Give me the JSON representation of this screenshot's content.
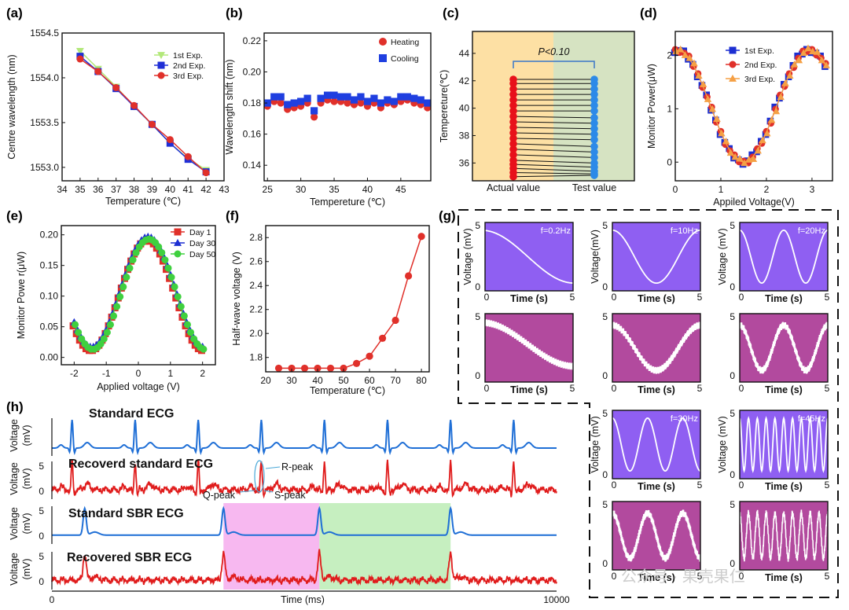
{
  "panel_labels": [
    "(a)",
    "(b)",
    "(c)",
    "(d)",
    "(e)",
    "(f)",
    "(g)",
    "(h)"
  ],
  "watermark": "公众号 · 果壳果仁",
  "chart_data": [
    {
      "id": "a",
      "type": "line",
      "xlabel": "Temperature (℃)",
      "ylabel": "Centre wavelength (nm)",
      "xlim": [
        34,
        43
      ],
      "ylim": [
        1552.85,
        1554.5
      ],
      "xticks": [
        34,
        35,
        36,
        37,
        38,
        39,
        40,
        41,
        42,
        43
      ],
      "yticks": [
        1553.0,
        1553.5,
        1554.0,
        1554.5
      ],
      "ytick_labels": [
        "1553.0",
        "1553.5",
        "1554.0",
        "1554.5"
      ],
      "legend_position": "top-right",
      "series": [
        {
          "name": "1st Exp.",
          "color": "#b3e87a",
          "marker": "triangle-down",
          "x": [
            35,
            36,
            37,
            38,
            39,
            40,
            41,
            42
          ],
          "y": [
            1554.3,
            1554.1,
            1553.9,
            1553.68,
            1553.48,
            1553.27,
            1553.1,
            1552.97
          ]
        },
        {
          "name": "2nd Exp.",
          "color": "#1f2fd6",
          "marker": "square",
          "x": [
            35,
            36,
            37,
            38,
            39,
            40,
            41,
            42
          ],
          "y": [
            1554.24,
            1554.07,
            1553.88,
            1553.68,
            1553.48,
            1553.27,
            1553.09,
            1552.95
          ]
        },
        {
          "name": "3rd Exp.",
          "color": "#e0302a",
          "marker": "circle",
          "x": [
            35,
            36,
            37,
            38,
            39,
            40,
            41,
            42
          ],
          "y": [
            1554.21,
            1554.07,
            1553.89,
            1553.69,
            1553.48,
            1553.31,
            1553.12,
            1552.94
          ]
        }
      ]
    },
    {
      "id": "b",
      "type": "scatter",
      "xlabel": "Tempereture (℃)",
      "ylabel": "Wavelength shift (nm)",
      "xlim": [
        24.5,
        49.5
      ],
      "ylim": [
        0.13,
        0.225
      ],
      "xticks": [
        25,
        30,
        35,
        40,
        45
      ],
      "yticks": [
        0.14,
        0.16,
        0.18,
        0.2,
        0.22
      ],
      "ytick_labels": [
        "0.14",
        "0.16",
        "0.18",
        "0.20",
        "0.22"
      ],
      "legend_position": "top-right",
      "series": [
        {
          "name": "Heating",
          "color": "#e0302a",
          "marker": "circle",
          "x": [
            25,
            26,
            27,
            28,
            29,
            30,
            31,
            32,
            33,
            34,
            35,
            36,
            37,
            38,
            39,
            40,
            41,
            42,
            43,
            44,
            45,
            46,
            47,
            48,
            49
          ],
          "y": [
            0.178,
            0.181,
            0.18,
            0.176,
            0.177,
            0.178,
            0.18,
            0.171,
            0.18,
            0.182,
            0.181,
            0.181,
            0.18,
            0.179,
            0.18,
            0.178,
            0.18,
            0.177,
            0.18,
            0.179,
            0.181,
            0.182,
            0.18,
            0.179,
            0.177
          ]
        },
        {
          "name": "Cooling",
          "color": "#1f3fe0",
          "marker": "square",
          "x": [
            25,
            26,
            27,
            28,
            29,
            30,
            31,
            32,
            33,
            34,
            35,
            36,
            37,
            38,
            39,
            40,
            41,
            42,
            43,
            44,
            45,
            46,
            47,
            48,
            49
          ],
          "y": [
            0.18,
            0.184,
            0.184,
            0.179,
            0.18,
            0.181,
            0.183,
            0.175,
            0.183,
            0.185,
            0.185,
            0.184,
            0.184,
            0.182,
            0.184,
            0.181,
            0.183,
            0.18,
            0.182,
            0.181,
            0.184,
            0.184,
            0.183,
            0.182,
            0.18
          ]
        }
      ]
    },
    {
      "id": "c",
      "type": "scatter",
      "ylabel": "Tempereture(℃)",
      "ylim": [
        34.7,
        45.6
      ],
      "yticks": [
        36,
        38,
        40,
        42,
        44
      ],
      "categories": [
        "Actual value",
        "Test value"
      ],
      "annotation": "P<0.10",
      "actual": [
        35.0,
        35.3,
        35.6,
        35.9,
        36.2,
        36.6,
        37.0,
        37.4,
        37.8,
        38.2,
        38.6,
        39.0,
        39.4,
        39.8,
        40.2,
        40.6,
        41.0,
        41.4,
        41.8,
        42.1
      ],
      "test": [
        35.1,
        35.2,
        35.4,
        35.7,
        36.0,
        36.4,
        36.8,
        37.2,
        37.7,
        38.1,
        38.5,
        38.9,
        39.3,
        39.8,
        40.2,
        40.6,
        41.0,
        41.4,
        41.8,
        42.1
      ],
      "colors": {
        "actual": "#e8101a",
        "test": "#2c8ae8",
        "bg_left": "#fde0a4",
        "bg_right": "#d6e3c2"
      }
    },
    {
      "id": "d",
      "type": "line",
      "xlabel": "Appiled Voltage(V)",
      "ylabel": "Monitor Power(μW)",
      "xlim": [
        0,
        3.45
      ],
      "ylim": [
        -0.35,
        2.45
      ],
      "xticks": [
        0,
        1,
        2,
        3
      ],
      "yticks": [
        0,
        1,
        2
      ],
      "legend_position": "top-right",
      "series": [
        {
          "name": "1st Exp.",
          "color": "#1c2fd2",
          "marker": "square"
        },
        {
          "name": "2nd Exp.",
          "color": "#e0302a",
          "marker": "circle"
        },
        {
          "name": "3rd Exp.",
          "color": "#f5a045",
          "marker": "triangle-up"
        }
      ],
      "curve": {
        "formula": "y = 1.05 + 1.05*cos(pi*(x-0.05)/1.45)",
        "x_range": [
          0,
          3.3
        ],
        "points": 34
      }
    },
    {
      "id": "e",
      "type": "line",
      "xlabel": "Applied voltage (V)",
      "ylabel": "Monitor Powe r(μW)",
      "xlim": [
        -2.4,
        2.4
      ],
      "ylim": [
        -0.012,
        0.215
      ],
      "xticks": [
        -2,
        -1,
        0,
        1,
        2
      ],
      "yticks": [
        0.0,
        0.05,
        0.1,
        0.15,
        0.2
      ],
      "ytick_labels": [
        "0.00",
        "0.05",
        "0.10",
        "0.15",
        "0.20"
      ],
      "legend_position": "top-right",
      "series": [
        {
          "name": "Day 1",
          "color": "#e0302a",
          "marker": "square"
        },
        {
          "name": "Day 30",
          "color": "#1c2fd2",
          "marker": "triangle-up"
        },
        {
          "name": "Day 50",
          "color": "#3fd03f",
          "marker": "circle"
        }
      ],
      "curve": {
        "formula": "y = 0.105 + 0.09*cos(pi*(x-0.3)/1.75)",
        "x_range": [
          -2.0,
          2.0
        ],
        "points": 41
      }
    },
    {
      "id": "f",
      "type": "line",
      "xlabel": "Temperature (℃)",
      "ylabel": "Half-wave voltage (V)",
      "xlim": [
        20,
        83
      ],
      "ylim": [
        1.68,
        2.9
      ],
      "xticks": [
        20,
        30,
        40,
        50,
        60,
        70,
        80
      ],
      "yticks": [
        1.8,
        2.0,
        2.2,
        2.4,
        2.6,
        2.8
      ],
      "ytick_labels": [
        "1.8",
        "2.0",
        "2.2",
        "2.4",
        "2.6",
        "2.8"
      ],
      "series": [
        {
          "name": "",
          "color": "#e0302a",
          "marker": "circle",
          "x": [
            25,
            30,
            35,
            40,
            45,
            50,
            55,
            60,
            65,
            70,
            75,
            80
          ],
          "y": [
            1.71,
            1.71,
            1.71,
            1.71,
            1.71,
            1.71,
            1.75,
            1.81,
            1.96,
            2.11,
            2.48,
            2.81
          ]
        }
      ]
    },
    {
      "id": "g",
      "type": "line",
      "xlabel": "Time (s)",
      "ylabel_variants": [
        "Voltage (mV)",
        "Voltage(mV)"
      ],
      "xlim": [
        0,
        5
      ],
      "xticks": [
        0,
        5
      ],
      "yticks": [
        0,
        5
      ],
      "frequencies": [
        "f=0.2Hz",
        "f=10Hz",
        "f=20Hz",
        "f=30Hz",
        "f=45Hz"
      ],
      "cycles_shown": [
        0.5,
        1,
        2,
        2.5,
        10
      ],
      "colors": {
        "input_bg": "#8f5ff2",
        "output_bg": "#b24a9e",
        "trace": "#ffffff"
      }
    },
    {
      "id": "h",
      "type": "line",
      "xlabel": "Time  (ms)",
      "ylabel": "Voltage (mV)",
      "xlim": [
        0,
        10000
      ],
      "xticks": [
        0,
        10000
      ],
      "traces": [
        {
          "name": "Standard ECG",
          "color": "#1f6fd6",
          "beats_ms": [
            400,
            1650,
            2900,
            4150,
            5400,
            6650,
            7900,
            9150
          ]
        },
        {
          "name": "Recoverd standard ECG",
          "color": "#e01c1c",
          "beats_ms": [
            400,
            1650,
            2900,
            4150,
            5400,
            6650,
            7900,
            9150
          ]
        },
        {
          "name": "Standard SBR ECG",
          "color": "#1f6fd6",
          "beats_ms": [
            650,
            3400,
            5300,
            7900
          ]
        },
        {
          "name": "Recovered SBR ECG",
          "color": "#e01c1c",
          "beats_ms": [
            650,
            3400,
            5300,
            7900
          ]
        }
      ],
      "annotations": [
        "R-peak",
        "Q-peak",
        "S-peak"
      ],
      "highlights": [
        {
          "from_ms": 3400,
          "to_ms": 5300,
          "color": "#f7b8f0"
        },
        {
          "from_ms": 5300,
          "to_ms": 7900,
          "color": "#c6efc0"
        }
      ]
    }
  ]
}
